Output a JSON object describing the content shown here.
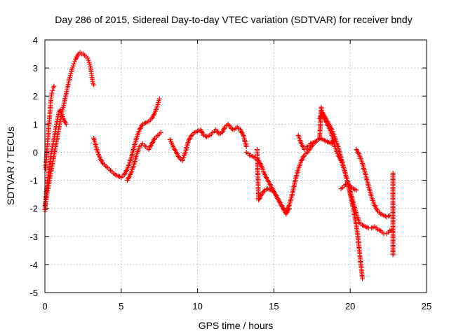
{
  "chart_data": {
    "type": "scatter",
    "title": "Day 286 of 2015, Sidereal Day-to-day VTEC variation (SDTVAR) for receiver bndy",
    "xlabel": "GPS time / hours",
    "ylabel": "SDTVAR / TECUs",
    "xlim": [
      0,
      25
    ],
    "ylim": [
      -5,
      4
    ],
    "xticks": [
      "0",
      "5",
      "10",
      "15",
      "20",
      "25"
    ],
    "yticks": [
      "-5",
      "-4",
      "-3",
      "-2",
      "-1",
      "0",
      "1",
      "2",
      "3",
      "4"
    ],
    "grid": true,
    "marker": "+",
    "color": "#ff0000",
    "series": [
      {
        "x": [
          0.0,
          0.05,
          0.1,
          0.15,
          0.2,
          0.3,
          0.4,
          0.5,
          0.6,
          0.7,
          0.8,
          0.9,
          1.0,
          1.1,
          1.2,
          1.3,
          1.4,
          1.5,
          1.6,
          1.7,
          1.8,
          1.9,
          2.0,
          2.1,
          2.2,
          2.3,
          2.4,
          2.5,
          2.6,
          2.7,
          2.8,
          2.9,
          3.0,
          3.05,
          3.1,
          3.15,
          3.2
        ],
        "y": [
          -1.9,
          -1.75,
          -1.6,
          -1.45,
          -1.3,
          -1.0,
          -0.7,
          -0.4,
          -0.1,
          0.2,
          0.5,
          0.8,
          1.1,
          1.4,
          1.6,
          1.85,
          2.1,
          2.35,
          2.6,
          2.8,
          3.0,
          3.15,
          3.3,
          3.4,
          3.5,
          3.55,
          3.5,
          3.5,
          3.45,
          3.4,
          3.35,
          3.2,
          3.0,
          2.8,
          2.6,
          2.45,
          2.4
        ]
      },
      {
        "x": [
          0.05,
          0.1,
          0.15,
          0.2,
          0.25,
          0.3,
          0.35,
          0.4,
          0.45,
          0.5,
          0.55,
          0.6
        ],
        "y": [
          -0.6,
          -0.2,
          0.2,
          0.5,
          0.9,
          1.2,
          1.6,
          1.9,
          2.1,
          2.2,
          2.3,
          2.35
        ]
      },
      {
        "x": [
          0.0,
          0.1,
          0.2,
          0.3,
          0.4,
          0.5,
          0.6,
          0.7,
          0.8,
          0.9,
          1.0,
          1.1,
          1.2,
          1.3,
          1.4
        ],
        "y": [
          -2.1,
          -1.4,
          -0.9,
          -0.5,
          -0.1,
          0.2,
          0.5,
          0.8,
          1.1,
          1.4,
          1.5,
          1.4,
          1.2,
          1.1,
          1.0
        ]
      },
      {
        "x": [
          3.2,
          3.4,
          3.6,
          3.8,
          4.0,
          4.2,
          4.4,
          4.6,
          4.8,
          5.0,
          5.2,
          5.4,
          5.6,
          5.8,
          6.0,
          6.2,
          6.4,
          6.6,
          6.8,
          7.0,
          7.2,
          7.4,
          7.5
        ],
        "y": [
          0.5,
          0.1,
          -0.2,
          -0.4,
          -0.5,
          -0.6,
          -0.7,
          -0.8,
          -0.85,
          -0.9,
          -0.8,
          -0.6,
          -0.3,
          0.1,
          0.5,
          0.8,
          1.0,
          1.05,
          1.1,
          1.2,
          1.4,
          1.7,
          1.9
        ]
      },
      {
        "x": [
          5.4,
          5.6,
          5.8,
          6.0,
          6.2,
          6.4,
          6.6,
          6.8,
          7.0,
          7.2,
          7.4,
          7.6
        ],
        "y": [
          -1.0,
          -0.8,
          -0.5,
          -0.1,
          0.2,
          0.3,
          0.2,
          0.1,
          0.3,
          0.5,
          0.6,
          0.7
        ]
      },
      {
        "x": [
          8.2,
          8.4,
          8.6,
          8.8,
          9.0,
          9.2,
          9.4,
          9.6,
          9.8,
          10.0,
          10.2,
          10.4,
          10.6,
          10.8,
          11.0,
          11.2,
          11.4,
          11.6,
          11.8,
          12.0,
          12.2,
          12.4,
          12.6,
          12.8,
          13.0,
          13.2
        ],
        "y": [
          0.45,
          0.2,
          0.0,
          -0.2,
          -0.3,
          0.0,
          0.4,
          0.6,
          0.7,
          0.75,
          0.8,
          0.6,
          0.55,
          0.6,
          0.7,
          0.8,
          0.65,
          0.7,
          0.9,
          1.0,
          0.85,
          0.8,
          0.9,
          0.8,
          0.6,
          0.2
        ]
      },
      {
        "x": [
          13.2,
          13.4,
          13.6,
          13.8,
          14.0,
          14.2,
          14.4,
          14.6,
          14.8,
          15.0,
          15.2,
          15.4,
          15.6,
          15.8,
          16.0,
          16.2,
          16.4,
          16.6,
          16.8,
          17.0,
          17.2,
          17.4,
          17.6,
          17.8,
          18.0,
          18.2,
          18.4,
          18.6,
          18.8,
          19.0
        ],
        "y": [
          0.0,
          -0.1,
          -0.15,
          -0.2,
          -0.3,
          -0.5,
          -0.8,
          -1.0,
          -1.2,
          -1.4,
          -1.6,
          -1.8,
          -2.0,
          -2.1,
          -1.9,
          -1.5,
          -1.0,
          -0.6,
          -0.3,
          -0.1,
          0.0,
          0.15,
          0.3,
          0.4,
          0.5,
          0.45,
          0.4,
          0.35,
          0.3,
          0.5
        ]
      },
      {
        "x": [
          13.9,
          14.0,
          14.2,
          14.4,
          14.6,
          14.8,
          15.0,
          15.2,
          15.4,
          15.6,
          15.8,
          16.0
        ],
        "y": [
          0.1,
          -1.7,
          -1.5,
          -1.35,
          -1.3,
          -1.35,
          -1.4,
          -1.6,
          -1.8,
          -2.0,
          -2.2,
          -2.0
        ]
      },
      {
        "x": [
          16.6,
          16.8,
          17.0,
          17.2,
          17.4,
          17.6,
          17.8,
          18.0,
          18.1,
          18.2,
          18.4,
          18.6,
          18.8,
          19.0,
          19.2,
          19.4,
          19.6,
          19.8,
          20.0,
          20.2,
          20.4,
          20.6,
          20.8,
          21.0,
          21.2,
          21.4,
          21.6,
          21.8,
          22.0,
          22.2,
          22.4,
          22.6,
          22.8
        ],
        "y": [
          0.6,
          0.3,
          0.1,
          0.2,
          0.3,
          0.35,
          0.4,
          0.5,
          1.6,
          1.3,
          1.1,
          0.9,
          0.6,
          0.2,
          -0.1,
          -0.3,
          -0.6,
          -1.0,
          -1.4,
          -1.8,
          -2.2,
          -2.5,
          -2.6,
          -2.65,
          -2.7,
          -2.7,
          -2.65,
          -2.75,
          -2.8,
          -2.9,
          -2.9,
          -2.8,
          -2.75
        ]
      },
      {
        "x": [
          18.0,
          18.2,
          18.4,
          18.6,
          18.8,
          19.0,
          19.2,
          19.4,
          19.6,
          19.8,
          20.0,
          20.2,
          20.4,
          20.5,
          20.6,
          20.7,
          20.8
        ],
        "y": [
          1.2,
          1.4,
          1.2,
          1.0,
          0.8,
          0.5,
          0.2,
          -0.2,
          -0.6,
          -1.0,
          -1.5,
          -2.0,
          -2.6,
          -3.0,
          -3.5,
          -4.0,
          -4.5
        ]
      },
      {
        "x": [
          20.4,
          20.6,
          20.8,
          21.0,
          21.2,
          21.4,
          21.6,
          21.8,
          22.0,
          22.2,
          22.4,
          22.6,
          22.8
        ],
        "y": [
          0.1,
          -0.1,
          -0.4,
          -0.8,
          -1.2,
          -1.6,
          -1.9,
          -2.1,
          -2.2,
          -2.25,
          -2.3,
          -2.25,
          -2.25
        ]
      },
      {
        "x": [
          19.4,
          19.6,
          19.8,
          20.0,
          20.2,
          20.4
        ],
        "y": [
          -1.3,
          -1.2,
          -1.1,
          -1.2,
          -1.3,
          -1.35
        ]
      },
      {
        "x": [
          22.8,
          22.8
        ],
        "y": [
          -0.75,
          -3.65
        ]
      }
    ]
  }
}
